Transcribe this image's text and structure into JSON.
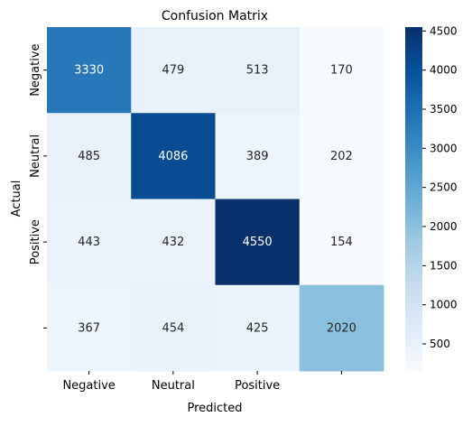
{
  "chart_data": {
    "type": "heatmap",
    "title": "Confusion Matrix",
    "xlabel": "Predicted",
    "ylabel": "Actual",
    "x_tick_labels": [
      "Negative",
      "Neutral",
      "Positive",
      ""
    ],
    "y_tick_labels": [
      "Negative",
      "Neutral",
      "Positive",
      ""
    ],
    "values": [
      [
        3330,
        479,
        513,
        170
      ],
      [
        485,
        4086,
        389,
        202
      ],
      [
        443,
        432,
        4550,
        154
      ],
      [
        367,
        454,
        425,
        2020
      ]
    ],
    "colorscale": "Blues",
    "colorbar": {
      "min": 154,
      "max": 4550,
      "ticks": [
        500,
        1000,
        1500,
        2000,
        2500,
        3000,
        3500,
        4000,
        4500
      ]
    }
  }
}
